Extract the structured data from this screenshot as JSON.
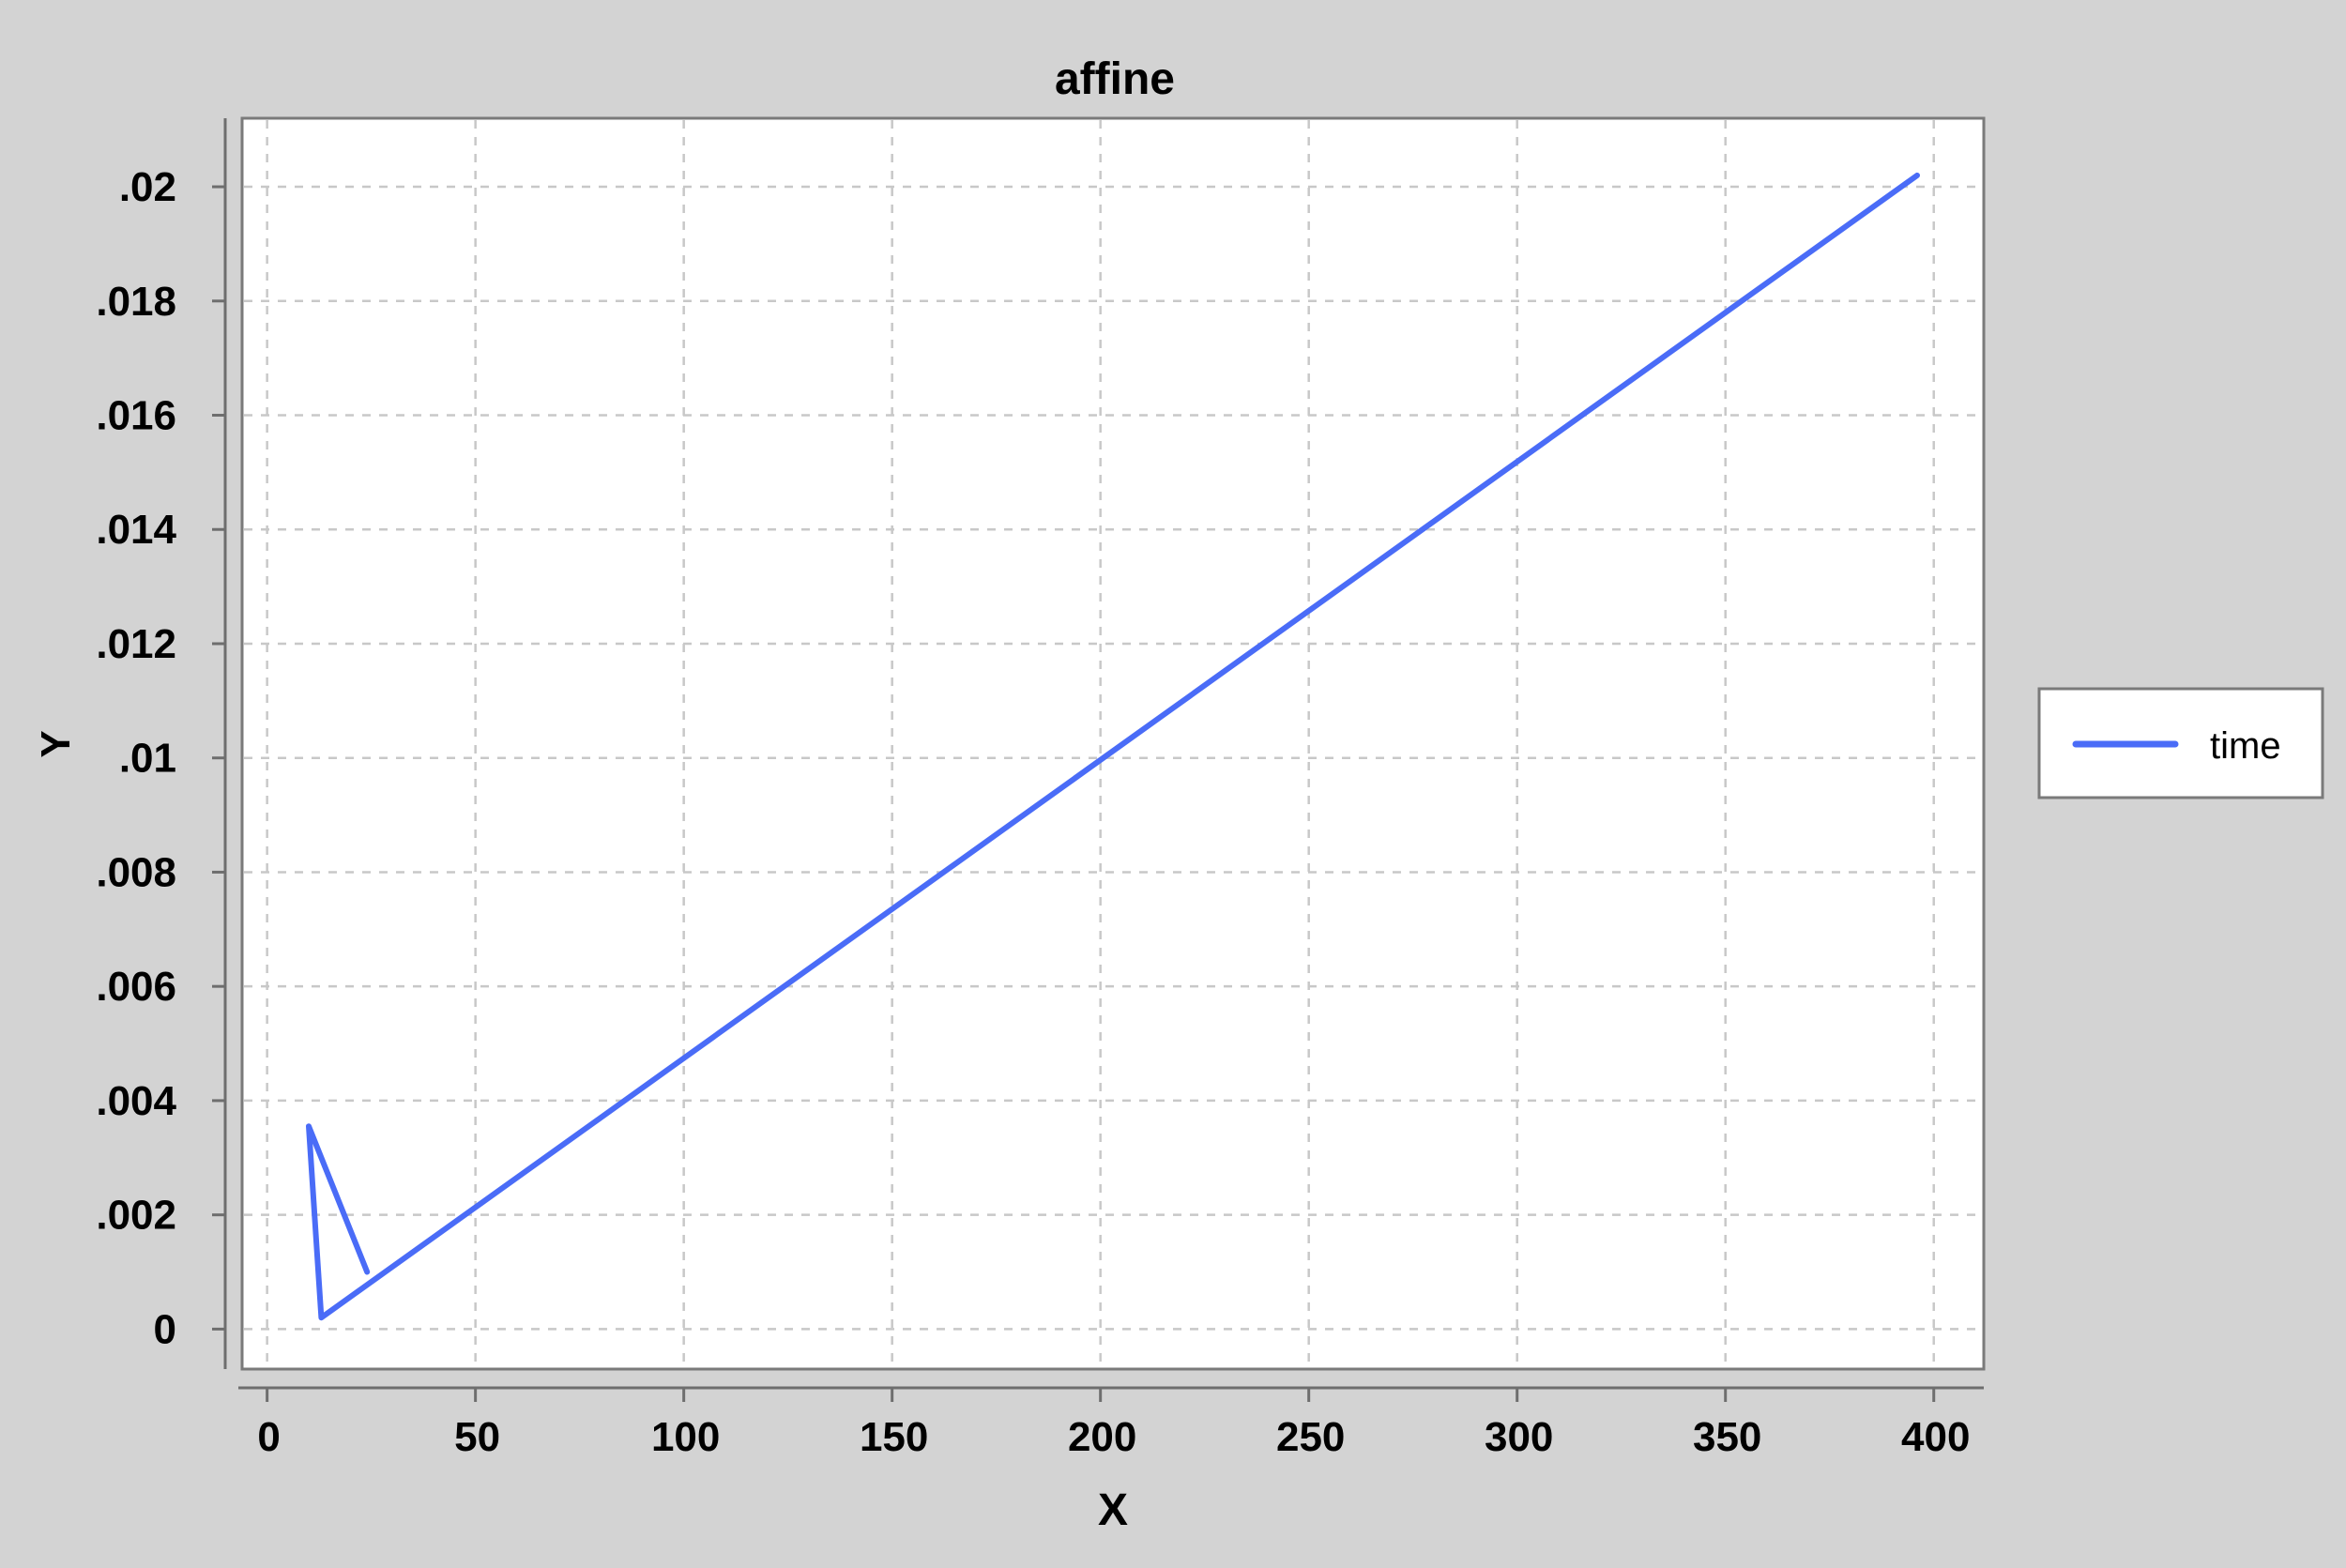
{
  "chart_data": {
    "type": "line",
    "title": "affine",
    "xlabel": "X",
    "ylabel": "Y",
    "xlim": [
      -6,
      412
    ],
    "ylim": [
      -0.0007,
      0.0212
    ],
    "x_ticks": [
      0,
      50,
      100,
      150,
      200,
      250,
      300,
      350,
      400
    ],
    "x_tick_labels": [
      "0",
      "50",
      "100",
      "150",
      "200",
      "250",
      "300",
      "350",
      "400"
    ],
    "y_ticks": [
      0,
      0.002,
      0.004,
      0.006,
      0.008,
      0.01,
      0.012,
      0.014,
      0.016,
      0.018,
      0.02
    ],
    "y_tick_labels": [
      "0",
      ".002",
      ".004",
      ".006",
      ".008",
      ".01",
      ".012",
      ".014",
      ".016",
      ".018",
      ".02"
    ],
    "grid": true,
    "legend_position": "right",
    "series": [
      {
        "name": "time",
        "color": "#4a6cf7",
        "x": [
          24,
          10,
          13,
          396
        ],
        "y": [
          0.001,
          0.00355,
          0.0002,
          0.0202
        ]
      }
    ]
  }
}
